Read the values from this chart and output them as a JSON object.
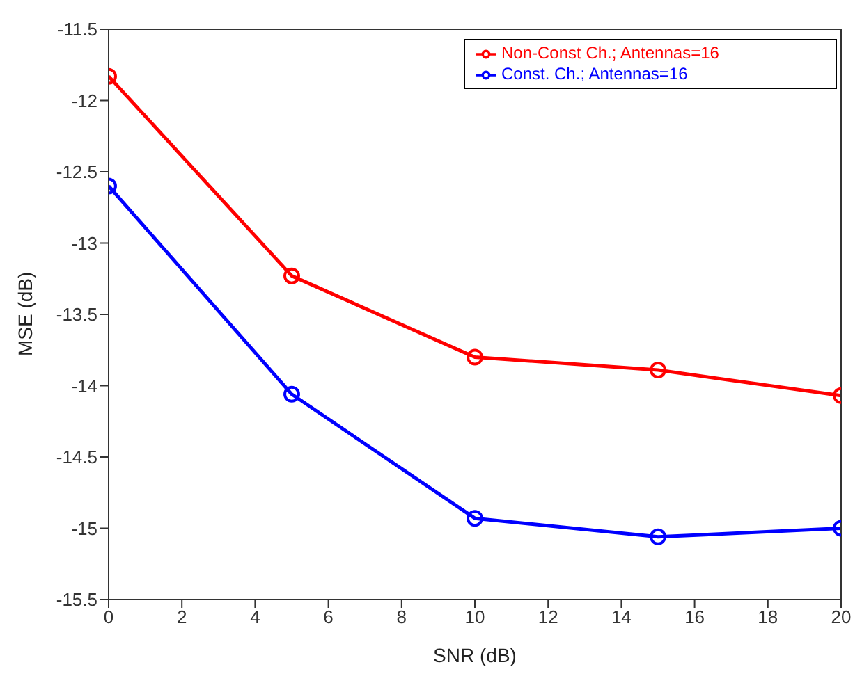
{
  "chart_data": {
    "type": "line",
    "xlabel": "SNR (dB)",
    "ylabel": "MSE (dB)",
    "x": [
      0,
      5,
      10,
      15,
      20
    ],
    "series": [
      {
        "name": "Non-Const Ch.; Antennas=16",
        "color": "#ff0000",
        "values": [
          -11.83,
          -13.23,
          -13.8,
          -13.89,
          -14.07
        ]
      },
      {
        "name": "Const. Ch.; Antennas=16",
        "color": "#0000ff",
        "values": [
          -12.6,
          -14.06,
          -14.93,
          -15.06,
          -15.0
        ]
      }
    ],
    "xlim": [
      0,
      20
    ],
    "xticks": [
      0,
      2,
      4,
      6,
      8,
      10,
      12,
      14,
      16,
      18,
      20
    ],
    "ylim": [
      -15.5,
      -11.5
    ],
    "yticks": [
      -15.5,
      -15,
      -14.5,
      -14,
      -13.5,
      -13,
      -12.5,
      -12,
      -11.5
    ],
    "legend": "top right",
    "marker": "circle",
    "line_style": "solid",
    "grid": false
  }
}
